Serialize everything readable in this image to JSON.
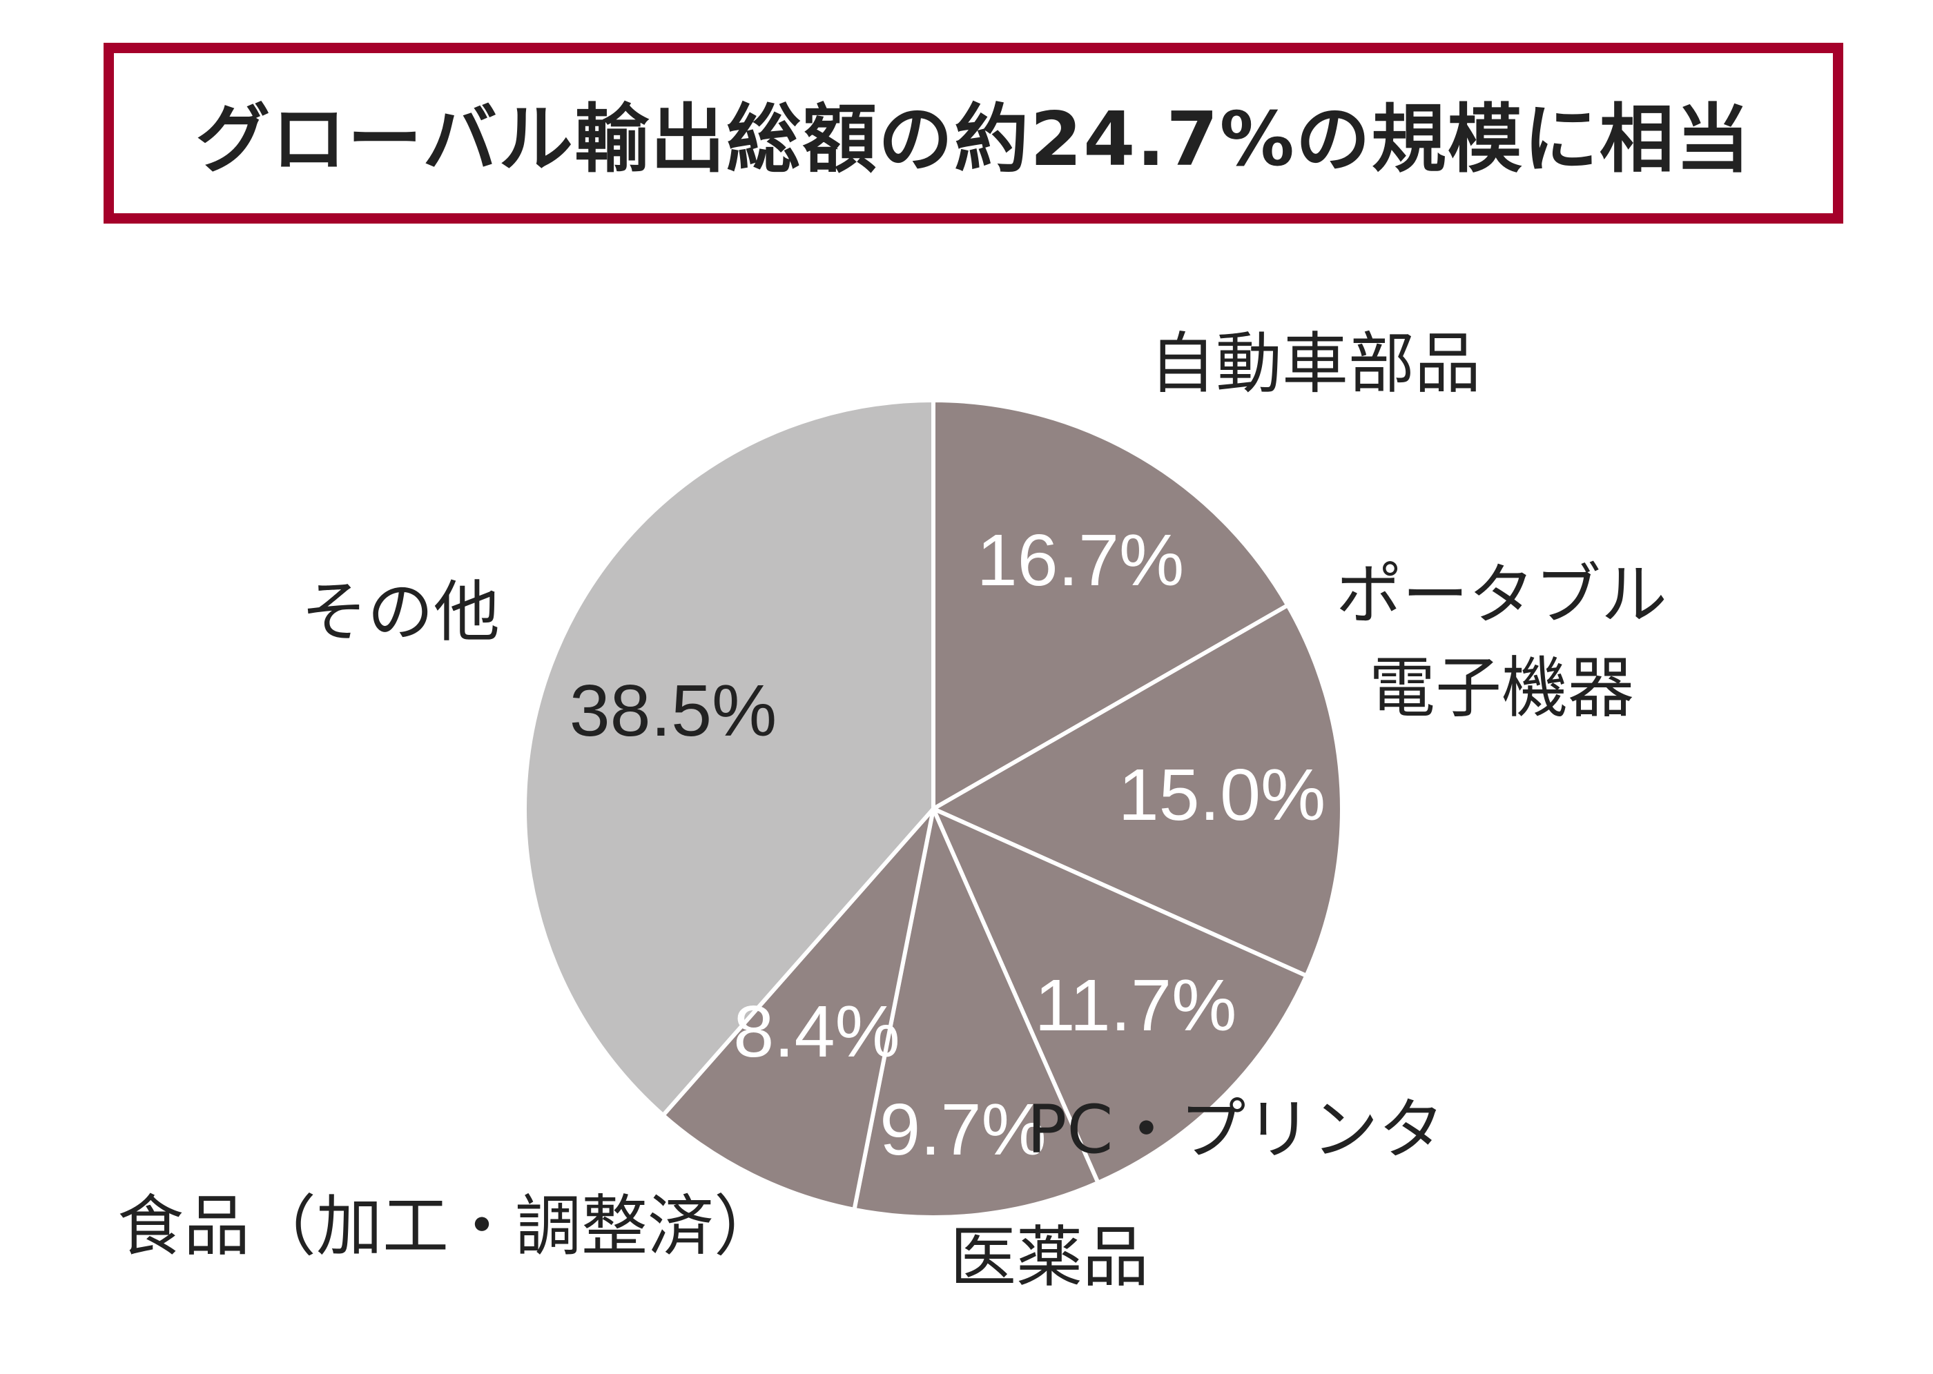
{
  "header": {
    "title": "グローバル輸出総額の約24.7%の規模に相当"
  },
  "colors": {
    "border": "#a5002a",
    "highlight_slice": "#928483",
    "other_slice": "#c0bfbf",
    "divider": "#ffffff",
    "text_dark": "#222222",
    "text_light": "#ffffff"
  },
  "chart_data": {
    "type": "pie",
    "start_angle": "12 o'clock",
    "direction": "clockwise",
    "slices": [
      {
        "category": "自動車部品",
        "value": 16.7,
        "label": "16.7%",
        "color": "#928483"
      },
      {
        "category": "ポータブル\n電子機器",
        "value": 15.0,
        "label": "15.0%",
        "color": "#928483"
      },
      {
        "category": "PC・プリンタ",
        "value": 11.7,
        "label": "11.7%",
        "color": "#928483"
      },
      {
        "category": "医薬品",
        "value": 9.7,
        "label": "9.7%",
        "color": "#928483"
      },
      {
        "category": "食品（加工・調整済）",
        "value": 8.4,
        "label": "8.4%",
        "color": "#928483"
      },
      {
        "category": "その他",
        "value": 38.5,
        "label": "38.5%",
        "color": "#c0bfbf"
      }
    ]
  }
}
